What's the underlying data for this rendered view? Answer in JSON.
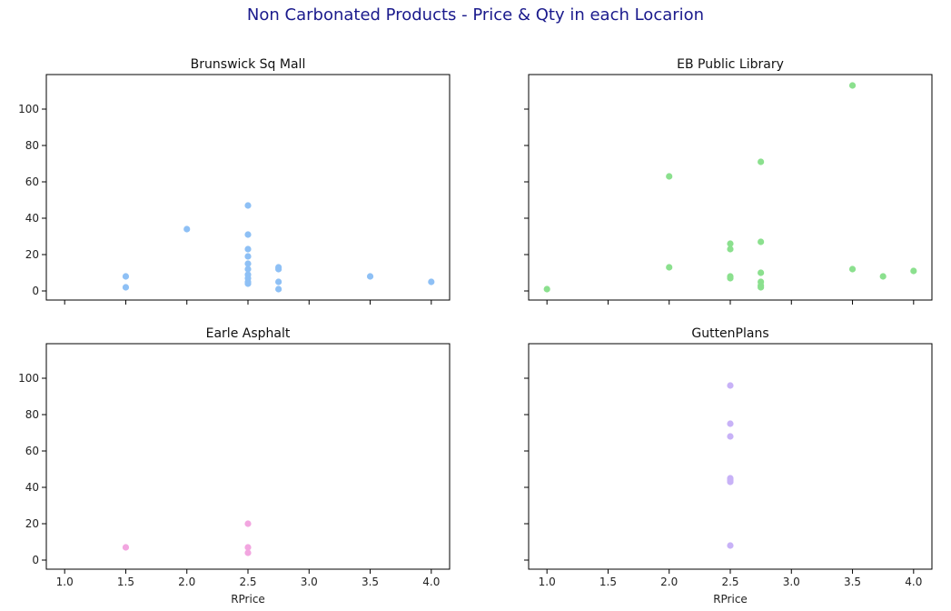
{
  "title": "Non Carbonated Products - Price & Qty in each Locarion",
  "title_color": "#1a1a8c",
  "chart_data": {
    "type": "scatter",
    "layout": "2x2 grid, shared x and y axes",
    "xlabel": "RPrice",
    "ylabel": "",
    "xlim": [
      0.85,
      4.15
    ],
    "ylim": [
      -5,
      119
    ],
    "xticks": [
      1.0,
      1.5,
      2.0,
      2.5,
      3.0,
      3.5,
      4.0
    ],
    "yticks": [
      0,
      20,
      40,
      60,
      80,
      100
    ],
    "grid": false,
    "panels": [
      {
        "title": "Brunswick Sq Mall",
        "color": "#8ec0f5",
        "points": [
          [
            1.5,
            8
          ],
          [
            1.5,
            2
          ],
          [
            2.0,
            34
          ],
          [
            2.5,
            47
          ],
          [
            2.5,
            31
          ],
          [
            2.5,
            23
          ],
          [
            2.5,
            19
          ],
          [
            2.5,
            15
          ],
          [
            2.5,
            12
          ],
          [
            2.5,
            9
          ],
          [
            2.5,
            7
          ],
          [
            2.5,
            5
          ],
          [
            2.5,
            4
          ],
          [
            2.75,
            13
          ],
          [
            2.75,
            12
          ],
          [
            2.75,
            5
          ],
          [
            2.75,
            1
          ],
          [
            3.5,
            8
          ],
          [
            4.0,
            5
          ]
        ]
      },
      {
        "title": "EB Public Library",
        "color": "#8be08e",
        "points": [
          [
            1.0,
            1
          ],
          [
            2.0,
            63
          ],
          [
            2.0,
            13
          ],
          [
            2.5,
            26
          ],
          [
            2.5,
            23
          ],
          [
            2.5,
            8
          ],
          [
            2.5,
            7
          ],
          [
            2.75,
            71
          ],
          [
            2.75,
            27
          ],
          [
            2.75,
            10
          ],
          [
            2.75,
            5
          ],
          [
            2.75,
            3
          ],
          [
            2.75,
            2
          ],
          [
            3.5,
            113
          ],
          [
            3.5,
            12
          ],
          [
            3.75,
            8
          ],
          [
            4.0,
            11
          ]
        ]
      },
      {
        "title": "Earle Asphalt",
        "color": "#f2a6e0",
        "points": [
          [
            1.5,
            7
          ],
          [
            2.5,
            20
          ],
          [
            2.5,
            7
          ],
          [
            2.5,
            4
          ]
        ]
      },
      {
        "title": "GuttenPlans",
        "color": "#c8b2f7",
        "points": [
          [
            2.5,
            96
          ],
          [
            2.5,
            75
          ],
          [
            2.5,
            68
          ],
          [
            2.5,
            45
          ],
          [
            2.5,
            44
          ],
          [
            2.5,
            43
          ],
          [
            2.5,
            8
          ]
        ]
      }
    ]
  }
}
